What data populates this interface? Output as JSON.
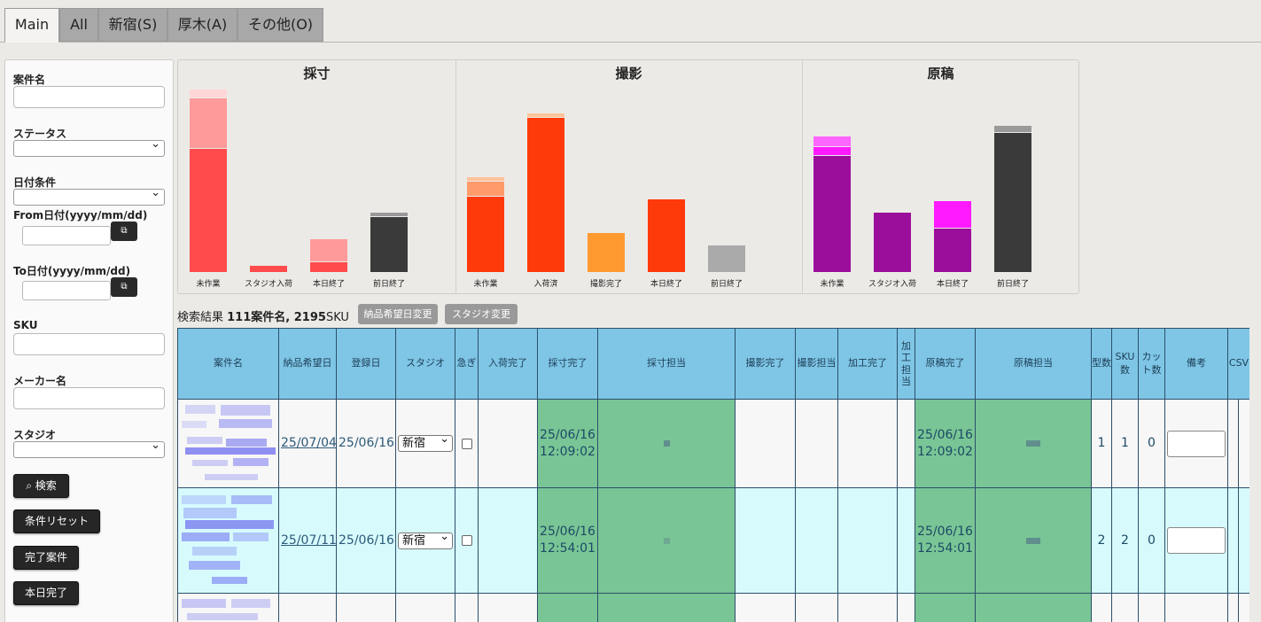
{
  "tabs": [
    "Main",
    "All",
    "新宿(S)",
    "厚木(A)",
    "その他(O)"
  ],
  "sidebar": {
    "case_name_label": "案件名",
    "status_label": "ステータス",
    "date_cond_label": "日付条件",
    "from_label": "From日付(yyyy/mm/dd)",
    "to_label": "To日付(yyyy/mm/dd)",
    "sku_label": "SKU",
    "maker_label": "メーカー名",
    "studio_label": "スタジオ",
    "search_btn": "⌕ 検索",
    "reset_btn": "条件リセット",
    "done_btn": "完了案件",
    "today_btn": "本日完了"
  },
  "charts": {
    "g1_title": "採寸",
    "g2_title": "撮影",
    "g3_title": "原稿",
    "g1_cats": [
      "未作業",
      "スタジオ入荷",
      "本日終了",
      "前日終了"
    ],
    "g2_cats": [
      "未作業",
      "入荷済",
      "撮影完了",
      "本日終了",
      "前日終了"
    ],
    "g3_cats": [
      "未作業",
      "スタジオ入荷",
      "本日終了",
      "前日終了"
    ]
  },
  "chart_data": [
    {
      "type": "bar",
      "title": "採寸",
      "categories": [
        "未作業",
        "スタジオ入荷",
        "本日終了",
        "前日終了"
      ],
      "colors": [
        "#ff4b4b",
        "#ff9a9a",
        "#ffd6d6",
        "#3a3a3a",
        "#9a9a9a"
      ],
      "segments": [
        [
          139,
          56,
          9
        ],
        [
          7,
          0,
          0
        ],
        [
          11,
          25,
          0
        ],
        [
          62,
          4,
          0
        ]
      ]
    },
    {
      "type": "bar",
      "title": "撮影",
      "categories": [
        "未作業",
        "入荷済",
        "撮影完了",
        "本日終了",
        "前日終了"
      ],
      "colors": [
        "#ff3a0a",
        "#ff9a6a",
        "#ffc39a",
        "#ff9a30",
        "#aaaaaa"
      ],
      "segments": [
        [
          85,
          16,
          4
        ],
        [
          174,
          4,
          0
        ],
        [
          44,
          0,
          0
        ],
        [
          82,
          0,
          0
        ],
        [
          30,
          0,
          0
        ]
      ]
    },
    {
      "type": "bar",
      "title": "原稿",
      "categories": [
        "未作業",
        "スタジオ入荷",
        "本日終了",
        "前日終了"
      ],
      "colors": [
        "#9b0d9b",
        "#ff1aff",
        "#ff66ff",
        "#3a3a3a",
        "#9a9a9a"
      ],
      "segments": [
        [
          131,
          9,
          11
        ],
        [
          67,
          0,
          0
        ],
        [
          49,
          30,
          0
        ],
        [
          157,
          7,
          0
        ]
      ]
    }
  ],
  "results": {
    "prefix": "検索結果 ",
    "count": "111案件名, 2195",
    "suffix": "SKU",
    "btn_date": "納品希望日変更",
    "btn_studio": "スタジオ変更"
  },
  "table": {
    "headers": [
      "案件名",
      "納品希望日",
      "登録日",
      "スタジオ",
      "急ぎ",
      "入荷完了",
      "採寸完了",
      "採寸担当",
      "撮影完了",
      "撮影担当",
      "加工完了",
      "加\n工\n担\n当",
      "原稿完了",
      "原稿担当",
      "型数",
      "SKU\n数",
      "カッ\nト数",
      "備考",
      "CSV"
    ],
    "rows": [
      {
        "due": "25/07/04",
        "reg": "25/06/16",
        "studio": "新宿",
        "measure_done": "25/06/16\n12:09:02",
        "draft_done": "25/06/16\n12:09:02",
        "types": "1",
        "sku": "1",
        "cuts": "0"
      },
      {
        "due": "25/07/11",
        "reg": "25/06/16",
        "studio": "新宿",
        "measure_done": "25/06/16\n12:54:01",
        "draft_done": "25/06/16\n12:54:01",
        "types": "2",
        "sku": "2",
        "cuts": "0"
      }
    ]
  }
}
